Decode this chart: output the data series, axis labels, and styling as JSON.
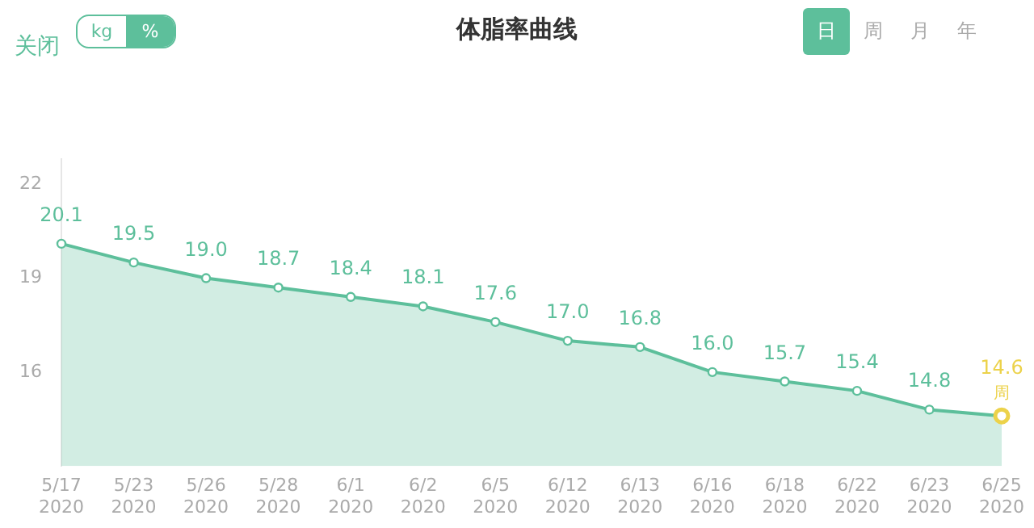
{
  "chart_data": {
    "type": "area",
    "title": "体脂率曲线",
    "categories": [
      "5/17 2020",
      "5/23 2020",
      "5/26 2020",
      "5/28 2020",
      "6/1 2020",
      "6/2 2020",
      "6/5 2020",
      "6/12 2020",
      "6/13 2020",
      "6/16 2020",
      "6/18 2020",
      "6/22 2020",
      "6/23 2020",
      "6/25 2020"
    ],
    "series": [
      {
        "color": "#5dbf9b",
        "colors": [
          "#5dbf9b",
          "#5dbf9b",
          "#5dbf9b",
          "#5dbf9b",
          "#5dbf9b",
          "#5dbf9b",
          "#5dbf9b",
          "#5dbf9b",
          "#5dbf9b",
          "#5dbf9b",
          "#5dbf9b",
          "#5dbf9b",
          "#5dbf9b",
          "#ecd24a"
        ],
        "values": [
          20.1,
          19.5,
          19.0,
          18.7,
          18.4,
          18.1,
          17.6,
          17.0,
          16.8,
          16.0,
          15.7,
          15.4,
          14.8,
          14.6
        ],
        "value_labels": [
          "20.1",
          "19.5",
          "19.0",
          "18.7",
          "18.4",
          "18.1",
          "17.6",
          "17.0",
          "16.8",
          "16.0",
          "15.7",
          "15.4",
          "14.8",
          "14.6"
        ]
      }
    ],
    "ylim": [
      13,
      22.8
    ],
    "yticks": [
      16,
      19,
      22
    ],
    "grid": false,
    "legend": false,
    "marker": "circle",
    "annotations": [
      "关闭",
      "kg",
      "%",
      "日",
      "周",
      "月",
      "年",
      {
        "text": "周",
        "x": "6/25 2020",
        "y": 14.6
      }
    ]
  }
}
